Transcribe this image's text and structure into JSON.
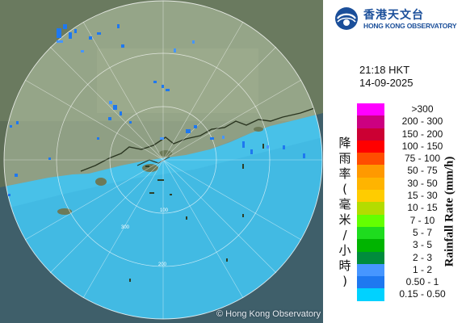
{
  "header": {
    "org_cn": "香港天文台",
    "org_en": "HONG KONG OBSERVATORY",
    "time": "21:18 HKT",
    "date": "14-09-2025"
  },
  "map": {
    "copyright": "© Hong Kong Observatory",
    "range_labels": [
      "100",
      "200",
      "300"
    ]
  },
  "legend": {
    "title_cn": "降雨率(毫米/小時)",
    "title_en": "Rainfall Rate (mm/h)",
    "items": [
      {
        "label": ">300",
        "color": "#ff00ff"
      },
      {
        "label": "200 - 300",
        "color": "#cc0080"
      },
      {
        "label": "150 - 200",
        "color": "#cc0033"
      },
      {
        "label": "100 - 150",
        "color": "#ff0000"
      },
      {
        "label": "75 - 100",
        "color": "#ff4d00"
      },
      {
        "label": "50 - 75",
        "color": "#ff9900"
      },
      {
        "label": "30 - 50",
        "color": "#ffb400"
      },
      {
        "label": "15 - 30",
        "color": "#ffcc00"
      },
      {
        "label": "10 - 15",
        "color": "#b4dc00"
      },
      {
        "label": "7 - 10",
        "color": "#64ff00"
      },
      {
        "label": "5 - 7",
        "color": "#1edc1e"
      },
      {
        "label": "3 - 5",
        "color": "#00b400"
      },
      {
        "label": "2 - 3",
        "color": "#008c3c"
      },
      {
        "label": "1 - 2",
        "color": "#4696ff"
      },
      {
        "label": "0.50 - 1",
        "color": "#1e78f0"
      },
      {
        "label": "0.15 - 0.50",
        "color": "#00d2ff"
      }
    ]
  }
}
